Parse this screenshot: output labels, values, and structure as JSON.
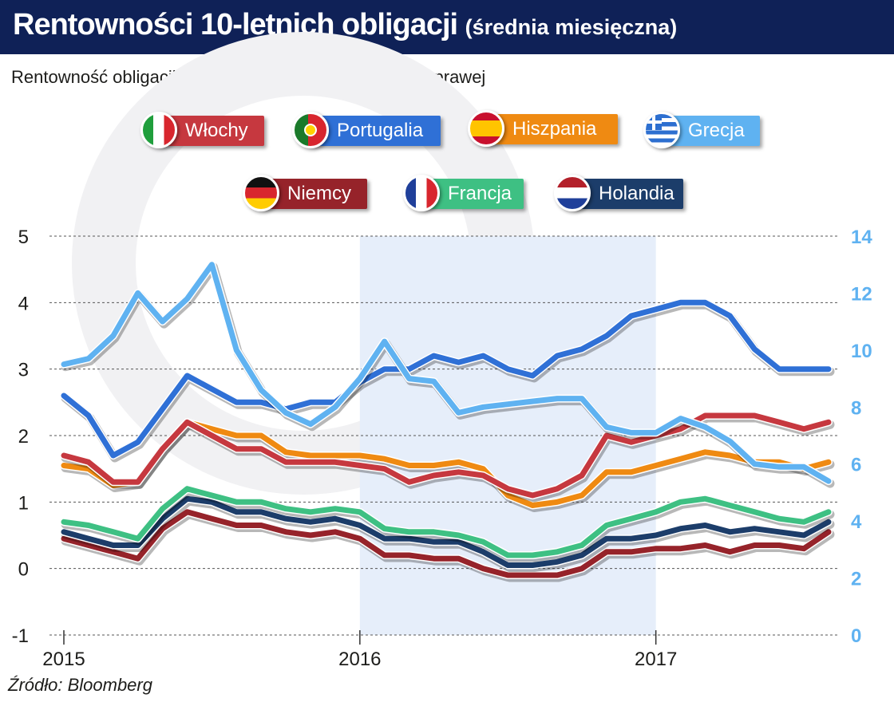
{
  "header": {
    "title": "Rentowności 10-letnich obligacji",
    "title_suffix": "(średnia miesięczna)"
  },
  "subtitle": "Rentowność obligacji greckich zaznaczona jest na osi prawej",
  "source": "Źródło: Bloomberg",
  "legend": [
    {
      "label": "Włochy",
      "color": "#c6383f",
      "flag": "it"
    },
    {
      "label": "Portugalia",
      "color": "#2f70d6",
      "flag": "pt"
    },
    {
      "label": "Hiszpania",
      "color": "#ef8a12",
      "flag": "es"
    },
    {
      "label": "Grecja",
      "color": "#5fb2f1",
      "flag": "gr"
    },
    {
      "label": "Niemcy",
      "color": "#96232a",
      "flag": "de"
    },
    {
      "label": "Francja",
      "color": "#3ec083",
      "flag": "fr"
    },
    {
      "label": "Holandia",
      "color": "#1c3d6a",
      "flag": "nl"
    }
  ],
  "chart_data": {
    "type": "line",
    "x": [
      "2015-01",
      "2015-02",
      "2015-03",
      "2015-04",
      "2015-05",
      "2015-06",
      "2015-07",
      "2015-08",
      "2015-09",
      "2015-10",
      "2015-11",
      "2015-12",
      "2016-01",
      "2016-02",
      "2016-03",
      "2016-04",
      "2016-05",
      "2016-06",
      "2016-07",
      "2016-08",
      "2016-09",
      "2016-10",
      "2016-11",
      "2016-12",
      "2017-01",
      "2017-02",
      "2017-03",
      "2017-04",
      "2017-05",
      "2017-06",
      "2017-07",
      "2017-08"
    ],
    "x_tick_labels": [
      "2015",
      "2016",
      "2017"
    ],
    "y_left": {
      "range": [
        -1,
        5
      ],
      "ticks": [
        "-1",
        "0",
        "1",
        "2",
        "3",
        "4",
        "5"
      ]
    },
    "y_right": {
      "range": [
        0,
        14
      ],
      "ticks": [
        "0",
        "2",
        "4",
        "6",
        "8",
        "10",
        "12",
        "14"
      ],
      "color": "#5fb2f1"
    },
    "shaded_period": {
      "from": "2016-01",
      "to": "2017-01"
    },
    "grid": "horizontal dashed",
    "series": [
      {
        "name": "Włochy",
        "axis": "left",
        "color": "#c6383f",
        "values": [
          1.7,
          1.6,
          1.3,
          1.3,
          1.8,
          2.2,
          2.0,
          1.8,
          1.8,
          1.6,
          1.6,
          1.6,
          1.55,
          1.5,
          1.3,
          1.4,
          1.45,
          1.4,
          1.2,
          1.1,
          1.2,
          1.4,
          2.0,
          1.9,
          2.0,
          2.1,
          2.3,
          2.3,
          2.3,
          2.2,
          2.1,
          2.2
        ]
      },
      {
        "name": "Portugalia",
        "axis": "left",
        "color": "#2f70d6",
        "values": [
          2.6,
          2.3,
          1.7,
          1.9,
          2.4,
          2.9,
          2.7,
          2.5,
          2.5,
          2.4,
          2.5,
          2.5,
          2.8,
          3.0,
          3.0,
          3.2,
          3.1,
          3.2,
          3.0,
          2.9,
          3.2,
          3.3,
          3.5,
          3.8,
          3.9,
          4.0,
          4.0,
          3.8,
          3.3,
          3.0,
          3.0,
          3.0
        ]
      },
      {
        "name": "Hiszpania",
        "axis": "left",
        "color": "#ef8a12",
        "values": [
          1.55,
          1.5,
          1.25,
          1.3,
          1.8,
          2.2,
          2.1,
          2.0,
          2.0,
          1.75,
          1.7,
          1.7,
          1.7,
          1.65,
          1.55,
          1.55,
          1.6,
          1.5,
          1.1,
          0.95,
          1.0,
          1.1,
          1.45,
          1.45,
          1.55,
          1.65,
          1.75,
          1.7,
          1.6,
          1.6,
          1.5,
          1.6
        ]
      },
      {
        "name": "Grecja",
        "axis": "right",
        "color": "#5fb2f1",
        "values": [
          9.5,
          9.7,
          10.5,
          12.0,
          11.0,
          11.8,
          13.0,
          10.0,
          8.6,
          7.8,
          7.4,
          8.0,
          9.0,
          10.3,
          9.0,
          8.9,
          7.8,
          8.0,
          8.1,
          8.2,
          8.3,
          8.3,
          7.3,
          7.1,
          7.1,
          7.6,
          7.3,
          6.8,
          6.0,
          5.9,
          5.9,
          5.4
        ]
      },
      {
        "name": "Niemcy",
        "axis": "left",
        "color": "#96232a",
        "values": [
          0.45,
          0.35,
          0.25,
          0.15,
          0.6,
          0.85,
          0.75,
          0.65,
          0.65,
          0.55,
          0.5,
          0.55,
          0.45,
          0.2,
          0.2,
          0.15,
          0.15,
          0.0,
          -0.1,
          -0.1,
          -0.1,
          0.0,
          0.25,
          0.25,
          0.3,
          0.3,
          0.35,
          0.25,
          0.35,
          0.35,
          0.3,
          0.55
        ]
      },
      {
        "name": "Francja",
        "axis": "left",
        "color": "#3ec083",
        "values": [
          0.7,
          0.65,
          0.55,
          0.45,
          0.9,
          1.2,
          1.1,
          1.0,
          1.0,
          0.9,
          0.85,
          0.9,
          0.85,
          0.6,
          0.55,
          0.55,
          0.5,
          0.4,
          0.2,
          0.2,
          0.25,
          0.35,
          0.65,
          0.75,
          0.85,
          1.0,
          1.05,
          0.95,
          0.85,
          0.75,
          0.7,
          0.85
        ]
      },
      {
        "name": "Holandia",
        "axis": "left",
        "color": "#1c3d6a",
        "values": [
          0.55,
          0.45,
          0.35,
          0.35,
          0.75,
          1.05,
          1.0,
          0.85,
          0.85,
          0.75,
          0.7,
          0.75,
          0.65,
          0.45,
          0.45,
          0.4,
          0.4,
          0.25,
          0.05,
          0.05,
          0.1,
          0.2,
          0.45,
          0.45,
          0.5,
          0.6,
          0.65,
          0.55,
          0.6,
          0.55,
          0.5,
          0.7
        ]
      }
    ]
  }
}
